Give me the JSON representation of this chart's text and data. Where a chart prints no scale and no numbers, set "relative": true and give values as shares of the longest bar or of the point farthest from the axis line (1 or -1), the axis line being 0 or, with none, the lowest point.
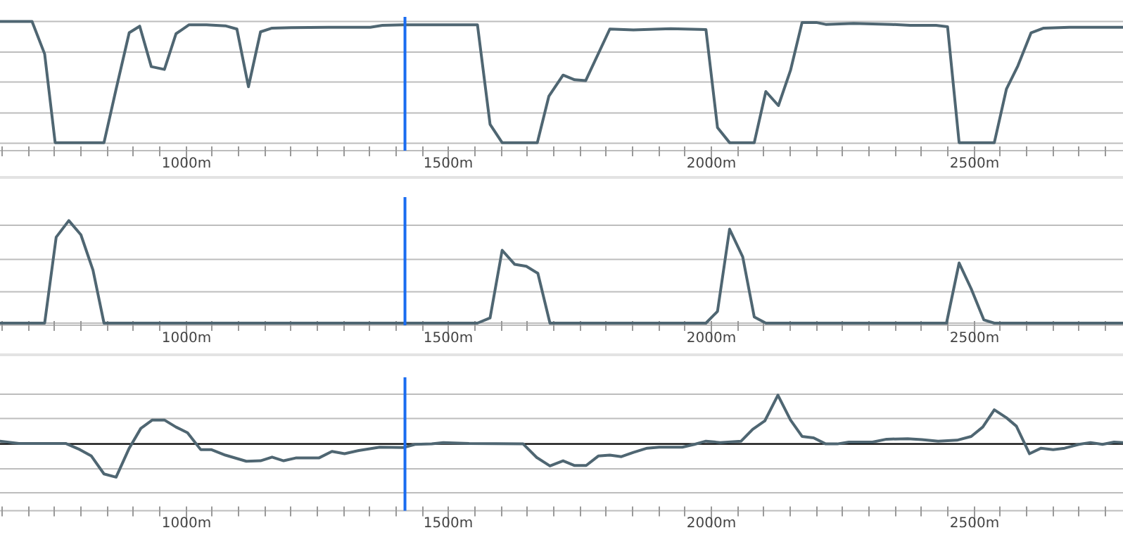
{
  "chart_data": [
    {
      "type": "line",
      "relative": true,
      "grid": true,
      "tick_labels": "x",
      "xlim": [
        647,
        2785
      ],
      "xticks": [
        {
          "value": 650,
          "label": null
        },
        {
          "value": 700,
          "label": null
        },
        {
          "value": 750,
          "label": null
        },
        {
          "value": 800,
          "label": null
        },
        {
          "value": 850,
          "label": null
        },
        {
          "value": 900,
          "label": null
        },
        {
          "value": 950,
          "label": null
        },
        {
          "value": 1000,
          "label": "1000m"
        },
        {
          "value": 1050,
          "label": null
        },
        {
          "value": 1100,
          "label": null
        },
        {
          "value": 1150,
          "label": null
        },
        {
          "value": 1200,
          "label": null
        },
        {
          "value": 1250,
          "label": null
        },
        {
          "value": 1300,
          "label": null
        },
        {
          "value": 1350,
          "label": null
        },
        {
          "value": 1400,
          "label": null
        },
        {
          "value": 1450,
          "label": null
        },
        {
          "value": 1500,
          "label": "1500m"
        },
        {
          "value": 1550,
          "label": null
        },
        {
          "value": 1600,
          "label": null
        },
        {
          "value": 1650,
          "label": null
        },
        {
          "value": 1700,
          "label": null
        },
        {
          "value": 1750,
          "label": null
        },
        {
          "value": 1800,
          "label": null
        },
        {
          "value": 1850,
          "label": null
        },
        {
          "value": 1900,
          "label": null
        },
        {
          "value": 1950,
          "label": null
        },
        {
          "value": 2000,
          "label": "2000m"
        },
        {
          "value": 2050,
          "label": null
        },
        {
          "value": 2100,
          "label": null
        },
        {
          "value": 2150,
          "label": null
        },
        {
          "value": 2200,
          "label": null
        },
        {
          "value": 2250,
          "label": null
        },
        {
          "value": 2300,
          "label": null
        },
        {
          "value": 2350,
          "label": null
        },
        {
          "value": 2400,
          "label": null
        },
        {
          "value": 2450,
          "label": null
        },
        {
          "value": 2500,
          "label": "2500m"
        },
        {
          "value": 2550,
          "label": null
        },
        {
          "value": 2600,
          "label": null
        },
        {
          "value": 2650,
          "label": null
        },
        {
          "value": 2700,
          "label": null
        },
        {
          "value": 2750,
          "label": null
        }
      ],
      "ref_lines": [
        {
          "axis": "x",
          "value": 1418,
          "label": null,
          "color": "#1a6cf0"
        }
      ],
      "series": [
        {
          "color": "#4f6672",
          "x": [
            647,
            708,
            732,
            752,
            845,
            868,
            893,
            913,
            935,
            960,
            982,
            1007,
            1040,
            1076,
            1098,
            1120,
            1143,
            1165,
            1201,
            1272,
            1352,
            1375,
            1415,
            1556,
            1580,
            1603,
            1670,
            1692,
            1719,
            1741,
            1762,
            1808,
            1853,
            1924,
            1991,
            2013,
            2036,
            2083,
            2105,
            2129,
            2152,
            2174,
            2201,
            2219,
            2272,
            2344,
            2380,
            2429,
            2451,
            2473,
            2540,
            2563,
            2585,
            2610,
            2634,
            2683,
            2785
          ],
          "values": [
            1.0,
            1.0,
            0.749,
            0.062,
            0.062,
            0.476,
            0.913,
            0.964,
            0.651,
            0.629,
            0.905,
            0.975,
            0.975,
            0.967,
            0.942,
            0.495,
            0.92,
            0.949,
            0.953,
            0.956,
            0.956,
            0.971,
            0.975,
            0.975,
            0.204,
            0.062,
            0.062,
            0.422,
            0.585,
            0.549,
            0.542,
            0.942,
            0.935,
            0.945,
            0.938,
            0.178,
            0.062,
            0.062,
            0.458,
            0.349,
            0.622,
            0.993,
            0.993,
            0.978,
            0.985,
            0.978,
            0.971,
            0.971,
            0.96,
            0.062,
            0.062,
            0.476,
            0.658,
            0.913,
            0.949,
            0.956,
            0.956
          ]
        }
      ]
    },
    {
      "type": "line",
      "relative": true,
      "grid": true,
      "tick_labels": "x",
      "xlim": [
        647,
        2785
      ],
      "xticks": [
        {
          "value": 650,
          "label": null
        },
        {
          "value": 700,
          "label": null
        },
        {
          "value": 750,
          "label": null
        },
        {
          "value": 800,
          "label": null
        },
        {
          "value": 850,
          "label": null
        },
        {
          "value": 900,
          "label": null
        },
        {
          "value": 950,
          "label": null
        },
        {
          "value": 1000,
          "label": "1000m"
        },
        {
          "value": 1050,
          "label": null
        },
        {
          "value": 1100,
          "label": null
        },
        {
          "value": 1150,
          "label": null
        },
        {
          "value": 1200,
          "label": null
        },
        {
          "value": 1250,
          "label": null
        },
        {
          "value": 1300,
          "label": null
        },
        {
          "value": 1350,
          "label": null
        },
        {
          "value": 1400,
          "label": null
        },
        {
          "value": 1450,
          "label": null
        },
        {
          "value": 1500,
          "label": "1500m"
        },
        {
          "value": 1550,
          "label": null
        },
        {
          "value": 1600,
          "label": null
        },
        {
          "value": 1650,
          "label": null
        },
        {
          "value": 1700,
          "label": null
        },
        {
          "value": 1750,
          "label": null
        },
        {
          "value": 1800,
          "label": null
        },
        {
          "value": 1850,
          "label": null
        },
        {
          "value": 1900,
          "label": null
        },
        {
          "value": 1950,
          "label": null
        },
        {
          "value": 2000,
          "label": "2000m"
        },
        {
          "value": 2050,
          "label": null
        },
        {
          "value": 2100,
          "label": null
        },
        {
          "value": 2150,
          "label": null
        },
        {
          "value": 2200,
          "label": null
        },
        {
          "value": 2250,
          "label": null
        },
        {
          "value": 2300,
          "label": null
        },
        {
          "value": 2350,
          "label": null
        },
        {
          "value": 2400,
          "label": null
        },
        {
          "value": 2450,
          "label": null
        },
        {
          "value": 2500,
          "label": "2500m"
        },
        {
          "value": 2550,
          "label": null
        },
        {
          "value": 2600,
          "label": null
        },
        {
          "value": 2650,
          "label": null
        },
        {
          "value": 2700,
          "label": null
        },
        {
          "value": 2750,
          "label": null
        }
      ],
      "ref_lines": [
        {
          "axis": "x",
          "value": 1418,
          "label": null,
          "color": "#1a6cf0"
        }
      ],
      "series": [
        {
          "color": "#4f6672",
          "x": [
            647,
            732,
            754,
            778,
            801,
            824,
            845,
            1556,
            1580,
            1603,
            1627,
            1649,
            1671,
            1694,
            1991,
            2013,
            2036,
            2061,
            2083,
            2105,
            2449,
            2473,
            2496,
            2520,
            2540,
            2785
          ],
          "values": [
            0,
            0,
            0.839,
            1,
            0.862,
            0.518,
            0,
            0,
            0.05,
            0.711,
            0.573,
            0.555,
            0.486,
            0,
            0,
            0.115,
            0.917,
            0.647,
            0.06,
            0,
            0,
            0.587,
            0.335,
            0.032,
            0,
            0
          ]
        }
      ]
    },
    {
      "type": "line",
      "relative": true,
      "grid": true,
      "tick_labels": "x",
      "xlim": [
        647,
        2785
      ],
      "xticks": [
        {
          "value": 650,
          "label": null
        },
        {
          "value": 700,
          "label": null
        },
        {
          "value": 750,
          "label": null
        },
        {
          "value": 800,
          "label": null
        },
        {
          "value": 850,
          "label": null
        },
        {
          "value": 900,
          "label": null
        },
        {
          "value": 950,
          "label": null
        },
        {
          "value": 1000,
          "label": "1000m"
        },
        {
          "value": 1050,
          "label": null
        },
        {
          "value": 1100,
          "label": null
        },
        {
          "value": 1150,
          "label": null
        },
        {
          "value": 1200,
          "label": null
        },
        {
          "value": 1250,
          "label": null
        },
        {
          "value": 1300,
          "label": null
        },
        {
          "value": 1350,
          "label": null
        },
        {
          "value": 1400,
          "label": null
        },
        {
          "value": 1450,
          "label": null
        },
        {
          "value": 1500,
          "label": "1500m"
        },
        {
          "value": 1550,
          "label": null
        },
        {
          "value": 1600,
          "label": null
        },
        {
          "value": 1650,
          "label": null
        },
        {
          "value": 1700,
          "label": null
        },
        {
          "value": 1750,
          "label": null
        },
        {
          "value": 1800,
          "label": null
        },
        {
          "value": 1850,
          "label": null
        },
        {
          "value": 1900,
          "label": null
        },
        {
          "value": 1950,
          "label": null
        },
        {
          "value": 2000,
          "label": "2000m"
        },
        {
          "value": 2050,
          "label": null
        },
        {
          "value": 2100,
          "label": null
        },
        {
          "value": 2150,
          "label": null
        },
        {
          "value": 2200,
          "label": null
        },
        {
          "value": 2250,
          "label": null
        },
        {
          "value": 2300,
          "label": null
        },
        {
          "value": 2350,
          "label": null
        },
        {
          "value": 2400,
          "label": null
        },
        {
          "value": 2450,
          "label": null
        },
        {
          "value": 2500,
          "label": "2500m"
        },
        {
          "value": 2550,
          "label": null
        },
        {
          "value": 2600,
          "label": null
        },
        {
          "value": 2650,
          "label": null
        },
        {
          "value": 2700,
          "label": null
        },
        {
          "value": 2750,
          "label": null
        }
      ],
      "ref_lines": [
        {
          "axis": "x",
          "value": 1418,
          "label": null,
          "color": "#1a6cf0"
        },
        {
          "axis": "y",
          "value": 0.578,
          "label": null,
          "color": "#000000"
        }
      ],
      "series": [
        {
          "color": "#4f6672",
          "x": [
            647,
            683,
            772,
            799,
            821,
            845,
            868,
            893,
            915,
            937,
            960,
            982,
            1004,
            1029,
            1049,
            1076,
            1116,
            1143,
            1165,
            1187,
            1210,
            1254,
            1279,
            1303,
            1330,
            1370,
            1415,
            1437,
            1469,
            1491,
            1540,
            1643,
            1669,
            1694,
            1719,
            1741,
            1763,
            1786,
            1808,
            1830,
            1853,
            1879,
            1902,
            1946,
            1969,
            1991,
            2018,
            2058,
            2080,
            2103,
            2128,
            2152,
            2174,
            2196,
            2219,
            2241,
            2263,
            2308,
            2335,
            2375,
            2402,
            2433,
            2469,
            2496,
            2518,
            2540,
            2563,
            2582,
            2607,
            2629,
            2652,
            2674,
            2701,
            2723,
            2746,
            2768,
            2785
          ],
          "values": [
            0.602,
            0.582,
            0.582,
            0.529,
            0.473,
            0.318,
            0.29,
            0.541,
            0.712,
            0.785,
            0.785,
            0.724,
            0.675,
            0.529,
            0.529,
            0.481,
            0.428,
            0.432,
            0.464,
            0.432,
            0.456,
            0.456,
            0.513,
            0.493,
            0.521,
            0.55,
            0.546,
            0.574,
            0.578,
            0.59,
            0.582,
            0.578,
            0.46,
            0.387,
            0.432,
            0.391,
            0.391,
            0.473,
            0.481,
            0.468,
            0.505,
            0.541,
            0.55,
            0.55,
            0.574,
            0.602,
            0.59,
            0.602,
            0.704,
            0.777,
            1,
            0.785,
            0.643,
            0.631,
            0.578,
            0.578,
            0.594,
            0.594,
            0.619,
            0.623,
            0.615,
            0.602,
            0.61,
            0.643,
            0.724,
            0.874,
            0.805,
            0.732,
            0.493,
            0.541,
            0.529,
            0.541,
            0.574,
            0.59,
            0.574,
            0.594,
            0.59
          ]
        }
      ]
    }
  ]
}
